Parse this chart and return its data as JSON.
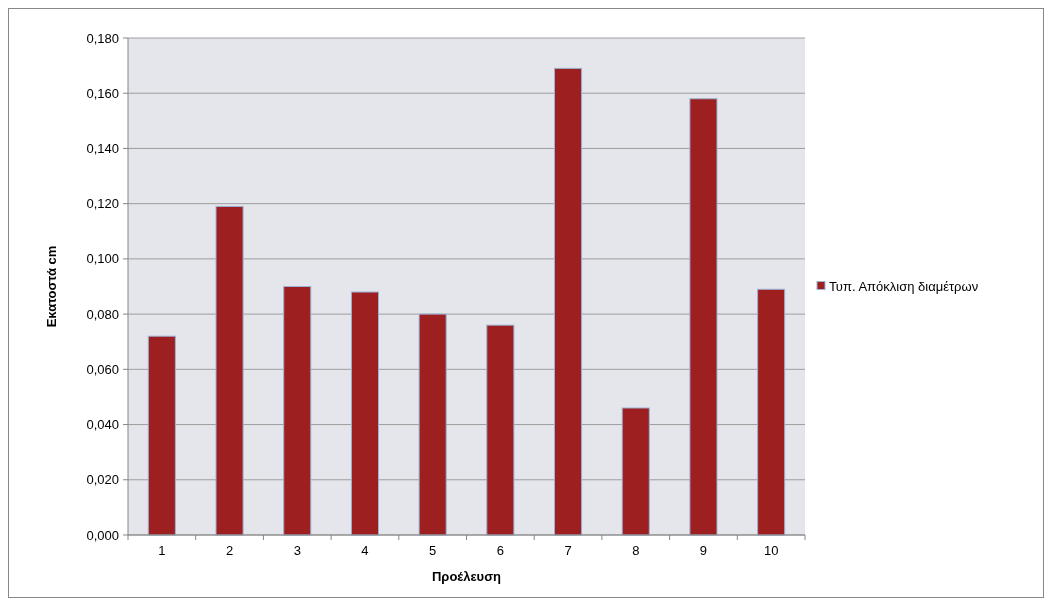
{
  "chart_data": {
    "type": "bar",
    "xlabel": "Προέλευση",
    "ylabel": "Εκατοστά cm",
    "categories": [
      "1",
      "2",
      "3",
      "4",
      "5",
      "6",
      "7",
      "8",
      "9",
      "10"
    ],
    "series": [
      {
        "name": "Τυπ. Απόκλιση διαμέτρων",
        "color": "#9e1f20",
        "values": [
          0.072,
          0.119,
          0.09,
          0.088,
          0.08,
          0.076,
          0.169,
          0.046,
          0.158,
          0.089
        ]
      }
    ],
    "ylim": [
      0,
      0.18
    ],
    "yticks": [
      {
        "value": 0,
        "label": "0,000"
      },
      {
        "value": 0.02,
        "label": "0,020"
      },
      {
        "value": 0.04,
        "label": "0,040"
      },
      {
        "value": 0.06,
        "label": "0,060"
      },
      {
        "value": 0.08,
        "label": "0,080"
      },
      {
        "value": 0.1,
        "label": "0,100"
      },
      {
        "value": 0.12,
        "label": "0,120"
      },
      {
        "value": 0.14,
        "label": "0,140"
      },
      {
        "value": 0.16,
        "label": "0,160"
      },
      {
        "value": 0.18,
        "label": "0,180"
      }
    ],
    "grid": "y",
    "legend": "right"
  }
}
